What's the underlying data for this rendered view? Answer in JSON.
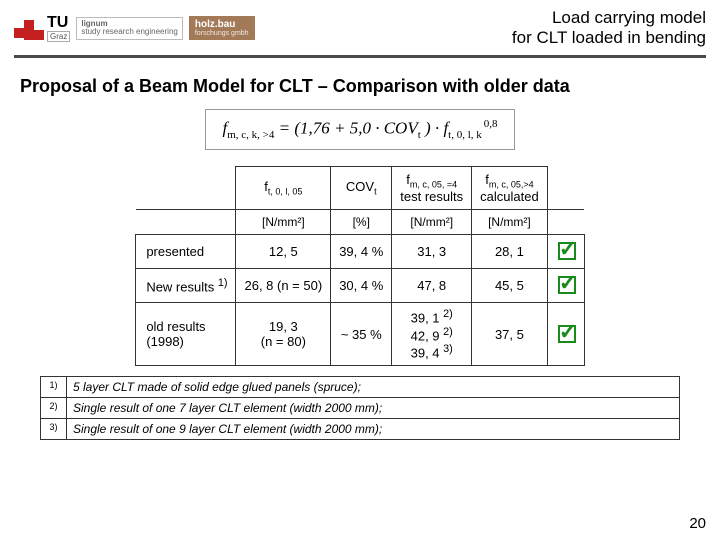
{
  "header": {
    "tu_text": "TU",
    "tu_sub": "Graz",
    "lignum_line1": "lignum",
    "lignum_line2": "study research engineering",
    "holzbau_line1": "holz.bau",
    "holzbau_line2": "forschungs gmbh",
    "title_line1": "Load carrying model",
    "title_line2": "for CLT loaded in bending"
  },
  "section_title": "Proposal of a Beam Model for CLT – Comparison with older data",
  "formula": {
    "lhs_base": "f",
    "lhs_sub": "m, c, k, >4",
    "eq": " = (1,76 + 5,0 · ",
    "cov": "COV",
    "cov_sub": "t",
    "mid": " ) · ",
    "rhs_base": "f",
    "rhs_sub": "t, 0, l, k",
    "rhs_sup": "0,8"
  },
  "table": {
    "col_headers": [
      {
        "html_base": "f",
        "sub": "t, 0, l, 05"
      },
      {
        "html_base": "COV",
        "sub": "t"
      },
      {
        "html_base": "f",
        "sub": "m, c, 05, =4",
        "suffix_line": "test results"
      },
      {
        "html_base": "f",
        "sub": "m, c, 05,>4",
        "suffix_line": "calculated"
      }
    ],
    "unit_row": [
      "[N/mm²]",
      "[%]",
      "[N/mm²]",
      "[N/mm²]"
    ],
    "rows": [
      {
        "label": "presented",
        "c1": "12, 5",
        "c2": "39, 4 %",
        "c3": "31, 3",
        "c4": "28, 1",
        "check": true
      },
      {
        "label_html": "New results <sup>1)</sup>",
        "c1": "26, 8 (n = 50)",
        "c2": "30, 4 %",
        "c3": "47, 8",
        "c4": "45, 5",
        "check": true
      },
      {
        "label_html": "old results<br>(1998)",
        "c1": "19, 3<br>(n = 80)",
        "c2": "~ 35 %",
        "c3_html": "39, 1 <sup>2)</sup><br>42, 9 <sup>2)</sup><br>39, 4 <sup>3)</sup>",
        "c4": "37, 5",
        "check": true
      }
    ]
  },
  "footnotes": [
    {
      "num": "1)",
      "text": "5 layer CLT made of solid edge glued panels (spruce);"
    },
    {
      "num": "2)",
      "text": "Single result of one 7 layer CLT element (width 2000 mm);"
    },
    {
      "num": "3)",
      "text": "Single result of one 9 layer CLT element (width 2000 mm);"
    }
  ],
  "page_number": "20",
  "colors": {
    "tu_red": "#c42020",
    "rule": "#4a4a4a",
    "check": "#1a8a1a",
    "holzbau_bg": "#a37a58",
    "border": "#333333"
  }
}
